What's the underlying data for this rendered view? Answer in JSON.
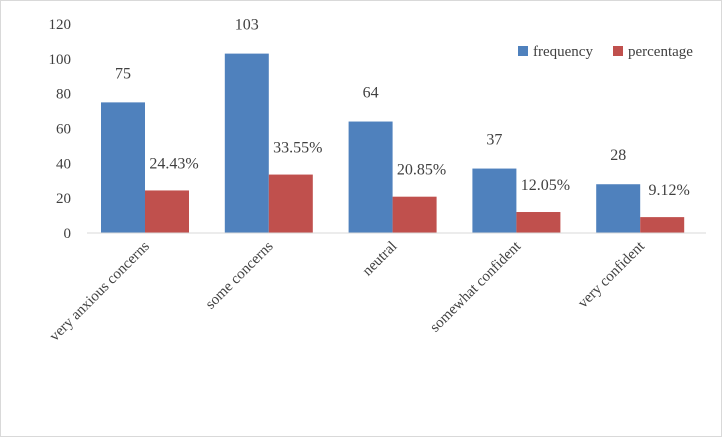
{
  "chart_data": {
    "type": "bar",
    "categories": [
      "very anxious concerns",
      "some concerns",
      "neutral",
      "somewhat confident",
      "very confident"
    ],
    "series": [
      {
        "name": "frequency",
        "values": [
          75,
          103,
          64,
          37,
          28
        ],
        "labels": [
          "75",
          "103",
          "64",
          "37",
          "28"
        ],
        "color": "#4F81BD"
      },
      {
        "name": "percentage",
        "values": [
          24.43,
          33.55,
          20.85,
          12.05,
          9.12
        ],
        "labels": [
          "24.43%",
          "33.55%",
          "20.85%",
          "12.05%",
          "9.12%"
        ],
        "color": "#C0504D"
      }
    ],
    "y_ticks": [
      "0",
      "20",
      "40",
      "60",
      "80",
      "100",
      "120"
    ],
    "ylim": [
      0,
      120
    ],
    "grid": false,
    "legend_position": "top-right"
  }
}
